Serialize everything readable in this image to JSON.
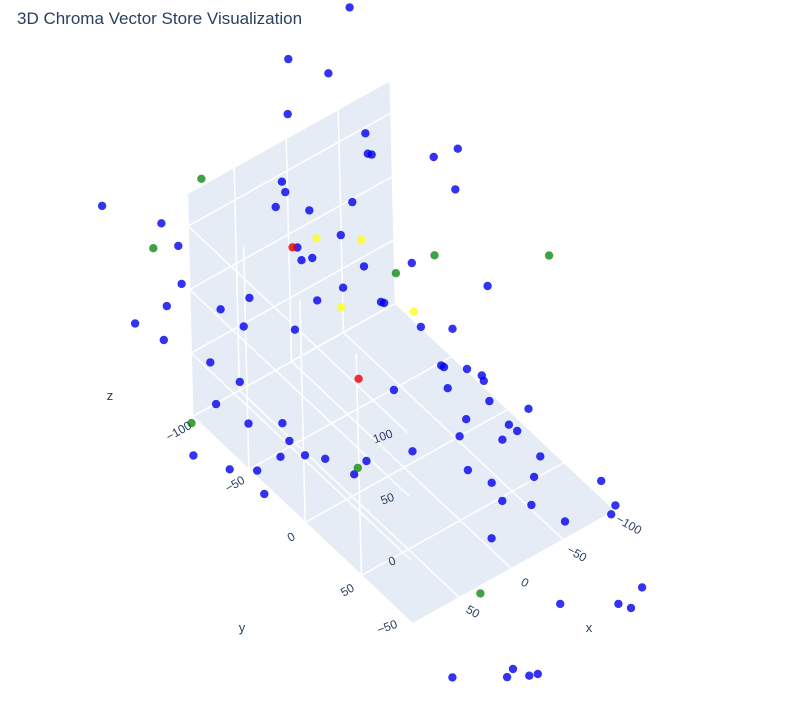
{
  "chart_data": {
    "type": "scatter3d",
    "title": "3D Chroma Vector Store Visualization",
    "xlabel": "x",
    "ylabel": "y",
    "zlabel": "z",
    "x_ticks": [
      "−100",
      "−50",
      "0",
      "50"
    ],
    "y_ticks": [
      "−100",
      "−50",
      "0",
      "50"
    ],
    "z_ticks": [
      "−50",
      "0",
      "50",
      "100"
    ],
    "colors": {
      "pane": "#e5ecf6",
      "grid": "#ffffff",
      "blue": "#0000ee",
      "green": "#138a13",
      "yellow": "#ffff1a",
      "red": "#ee0000"
    },
    "series": [
      {
        "color": "blue",
        "points": [
          [
            -28.8,
            -125.7,
            110.1
          ],
          [
            -78.4,
            -103.0,
            91.3
          ],
          [
            -78.9,
            -98.2,
            78.3
          ],
          [
            -102.5,
            -64.5,
            93.8
          ],
          [
            -99.6,
            -42.8,
            87.7
          ],
          [
            -5.4,
            -110.0,
            80.7
          ],
          [
            -31.4,
            -71.4,
            85.0
          ],
          [
            -1.6,
            -112.6,
            60.3
          ],
          [
            -51.8,
            -38.1,
            55.5
          ],
          [
            -1.8,
            -19.1,
            63.5
          ],
          [
            -33.7,
            -13.9,
            33.6
          ],
          [
            -16.0,
            -29.9,
            47.2
          ],
          [
            -8.1,
            -15.3,
            -5.5
          ],
          [
            -21.1,
            -71.7,
            22.0
          ],
          [
            -35.3,
            4.7,
            16.8
          ],
          [
            -39.0,
            -1.3,
            11.4
          ],
          [
            -40.2,
            2.9,
            -3.6
          ],
          [
            -94.3,
            -10.4,
            41.1
          ],
          [
            -47.7,
            27.0,
            23.1
          ],
          [
            -45.7,
            35.3,
            10.8
          ],
          [
            -64.1,
            13.0,
            -0.3
          ],
          [
            -44.2,
            54.0,
            8.5
          ],
          [
            -78.2,
            -27.8,
            0.2
          ],
          [
            -19.2,
            32.8,
            -6.9
          ],
          [
            -60.4,
            32.2,
            -28.9
          ],
          [
            -74.8,
            52.5,
            -31.7
          ],
          [
            -58.8,
            1.3,
            -37.8
          ],
          [
            -80.7,
            -17.9,
            -24.3
          ],
          [
            -98.3,
            20.3,
            -31.8
          ],
          [
            -89.2,
            18.3,
            -46.8
          ],
          [
            -39.6,
            41.5,
            -45.6
          ],
          [
            -14.6,
            -5.9,
            -48.9
          ],
          [
            -46.9,
            13.1,
            -62.6
          ],
          [
            -81.5,
            40.0,
            -61.3
          ],
          [
            -68.6,
            49.3,
            -69.8
          ],
          [
            -50.5,
            40.3,
            -65.8
          ],
          [
            -69.8,
            78.4,
            -59.0
          ],
          [
            1.6,
            -32.4,
            -71.3
          ],
          [
            -40.4,
            39.4,
            -91.4
          ],
          [
            -114.2,
            78.0,
            -74.0
          ],
          [
            -116.5,
            67.4,
            -57.6
          ],
          [
            -103.1,
            92.6,
            -49.7
          ],
          [
            -34.3,
            106.2,
            -84.5
          ],
          [
            -78.1,
            117.2,
            -95.3
          ],
          [
            -87.3,
            119.7,
            -100.7
          ],
          [
            -109.4,
            109.1,
            -103.4
          ],
          [
            -13.9,
            103.9,
            -132.3
          ],
          [
            -1.0,
            88.3,
            -141.9
          ],
          [
            -5.6,
            89.4,
            -136.7
          ],
          [
            29.5,
            67.8,
            -145.3
          ],
          [
            -12.4,
            97.6,
            -138.2
          ],
          [
            35.7,
            -11.2,
            -48.5
          ],
          [
            45.4,
            -27.9,
            -45.8
          ],
          [
            51.0,
            -40.9,
            -51.3
          ],
          [
            47.1,
            -64.5,
            -47.5
          ],
          [
            37.4,
            -67.8,
            -68.7
          ],
          [
            47.1,
            -66.9,
            -76.0
          ],
          [
            68.2,
            -68.2,
            -78.3
          ],
          [
            59.2,
            -83.7,
            -58.3
          ],
          [
            73.7,
            -87.9,
            -91.2
          ],
          [
            61.9,
            -68.3,
            -99.7
          ],
          [
            45.3,
            -104.0,
            -48.8
          ],
          [
            88.8,
            -106.1,
            -88.6
          ],
          [
            69.8,
            -102.6,
            -53.9
          ],
          [
            64.4,
            -112.1,
            -31.5
          ],
          [
            89.3,
            -130.1,
            -17.5
          ],
          [
            44.7,
            -120.5,
            -5.7
          ],
          [
            16.3,
            -80.6,
            -1.4
          ],
          [
            44.9,
            -99.7,
            -1.8
          ],
          [
            28.4,
            -109.7,
            4.9
          ],
          [
            66.8,
            -134.2,
            13.0
          ],
          [
            93.1,
            -152.2,
            -21.2
          ],
          [
            79.6,
            -135.9,
            -0.1
          ],
          [
            -20.5,
            -94.9,
            -7.1
          ],
          [
            -13.3,
            -104.9,
            29.5
          ],
          [
            -13.7,
            -92.0,
            31.8
          ],
          [
            -25.5,
            -105.0,
            53.1
          ],
          [
            -40.2,
            -91.0,
            38.6
          ],
          [
            -37.7,
            -68.1,
            34.2
          ],
          [
            8.5,
            -93.8,
            92.4
          ],
          [
            106.5,
            -166.8,
            65.3
          ],
          [
            70.3,
            -147.9,
            50.9
          ],
          [
            63.1,
            -140.0,
            36.4
          ],
          [
            13.9,
            -75.4,
            56.6
          ],
          [
            -32.3,
            -127.3,
            150.5
          ],
          [
            -52.0,
            -110.1,
            144.7
          ],
          [
            -83.5,
            -119.5,
            174.3
          ],
          [
            -47.4,
            -71.6,
            115.6
          ],
          [
            -103.3,
            -43.2,
            117.7
          ]
        ]
      },
      {
        "color": "green",
        "points": [
          [
            -122.9,
            18.8,
            76.4
          ],
          [
            -58.3,
            -23.5,
            70.8
          ],
          [
            -47.8,
            -49.0,
            40.2
          ],
          [
            32.0,
            -147.3,
            68.9
          ],
          [
            70.0,
            -156.1,
            24.3
          ],
          [
            -10.6,
            56.6,
            -106.8
          ],
          [
            4.5,
            -37.7,
            -79.8
          ],
          [
            76.8,
            -118.6,
            -79.0
          ]
        ]
      },
      {
        "color": "yellow",
        "points": [
          [
            -26.8,
            -59.6,
            67.1
          ],
          [
            -11.7,
            -85.8,
            53.4
          ],
          [
            -11.5,
            -64.7,
            16.9
          ],
          [
            -38.5,
            -24.5,
            34.7
          ]
        ]
      },
      {
        "color": "red",
        "points": [
          [
            0.2,
            -96.4,
            42.9
          ],
          [
            1.2,
            -38.2,
            -11.6
          ]
        ]
      }
    ]
  }
}
